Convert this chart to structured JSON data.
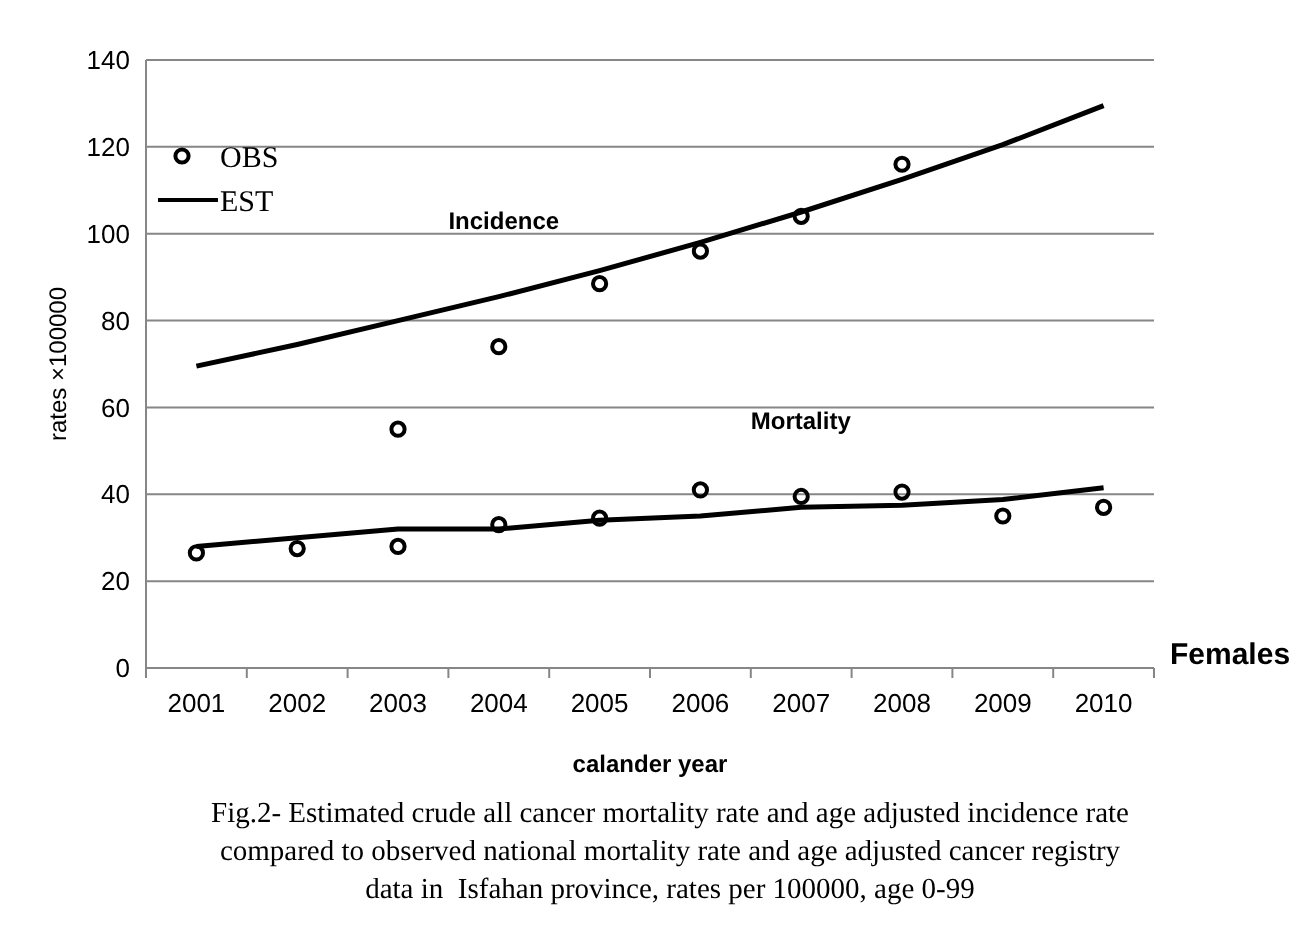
{
  "chart_data": {
    "type": "line",
    "xlabel": "calander year",
    "ylabel": "rates ×100000",
    "categories": [
      "2001",
      "2002",
      "2003",
      "2004",
      "2005",
      "2006",
      "2007",
      "2008",
      "2009",
      "2010"
    ],
    "ylim": [
      0,
      140
    ],
    "yticks": [
      0,
      20,
      40,
      60,
      80,
      100,
      120,
      140
    ],
    "grid": "y",
    "legend": "top left",
    "series": [
      {
        "name": "OBS",
        "type": "scatter",
        "marker": "circle",
        "color": "#000000",
        "values": [
          null,
          null,
          55,
          74,
          88.5,
          96,
          104,
          116,
          null,
          null
        ]
      },
      {
        "name": "EST",
        "marker": "none",
        "color": "#000000",
        "values": [
          69.5,
          74.5,
          80,
          85.5,
          91.5,
          98,
          105,
          112.5,
          120.5,
          129.5
        ]
      },
      {
        "type": "scatter",
        "marker": "circle",
        "color": "#000000",
        "values": [
          26.5,
          27.5,
          28,
          33,
          34.5,
          41,
          39.5,
          40.5,
          35,
          37
        ]
      },
      {
        "marker": "none",
        "color": "#000000",
        "values": [
          28,
          30,
          32,
          32,
          34,
          35,
          37,
          37.5,
          38.8,
          41.5
        ]
      }
    ],
    "annotations": [
      "Incidence",
      "Mortality",
      "Females",
      "Fig.2- Estimated crude all cancer mortality rate and age adjusted incidence rate\ncompared to observed national mortality rate and age adjusted cancer registry\ndata in  Isfahan province, rates per 100000, age 0-99"
    ]
  }
}
